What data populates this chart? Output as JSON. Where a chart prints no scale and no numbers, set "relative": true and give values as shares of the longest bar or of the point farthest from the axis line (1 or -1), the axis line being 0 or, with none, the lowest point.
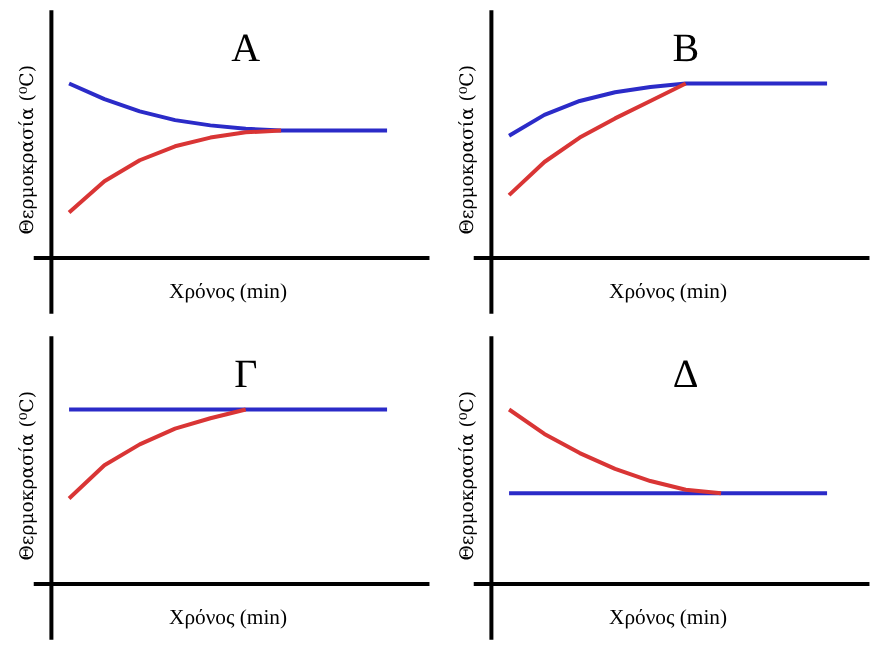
{
  "chart_data": [
    {
      "type": "line",
      "title": "Α",
      "xlabel": "Χρόνος (min)",
      "ylabel": "Θερμοκρασία (⁰C)",
      "relative": true,
      "categories": [
        null,
        null,
        null,
        null,
        null,
        null,
        null,
        null,
        null,
        null
      ],
      "series": [
        {
          "color": "#2b2bc8",
          "values": [
            1.0,
            0.91,
            0.84,
            0.79,
            0.76,
            0.74,
            0.73,
            0.73,
            0.73,
            0.73
          ]
        },
        {
          "color": "#d93535",
          "values": [
            0.26,
            0.44,
            0.56,
            0.64,
            0.69,
            0.72,
            0.73,
            null,
            null,
            null
          ]
        }
      ]
    },
    {
      "type": "line",
      "title": "Β",
      "xlabel": "Χρόνος (min)",
      "ylabel": "Θερμοκρασία (⁰C)",
      "relative": true,
      "categories": [
        null,
        null,
        null,
        null,
        null,
        null,
        null,
        null,
        null,
        null
      ],
      "series": [
        {
          "color": "#2b2bc8",
          "values": [
            0.7,
            0.82,
            0.9,
            0.95,
            0.98,
            1.0,
            1.0,
            1.0,
            1.0,
            1.0
          ]
        },
        {
          "color": "#d93535",
          "values": [
            0.36,
            0.55,
            0.69,
            0.8,
            0.9,
            1.0,
            null,
            null,
            null,
            null
          ]
        }
      ]
    },
    {
      "type": "line",
      "title": "Γ",
      "xlabel": "Χρόνος (min)",
      "ylabel": "Θερμοκρασία (⁰C)",
      "relative": true,
      "categories": [
        null,
        null,
        null,
        null,
        null,
        null,
        null,
        null,
        null,
        null
      ],
      "series": [
        {
          "color": "#2b2bc8",
          "values": [
            1.0,
            1.0,
            1.0,
            1.0,
            1.0,
            1.0,
            1.0,
            1.0,
            1.0,
            1.0
          ]
        },
        {
          "color": "#d93535",
          "values": [
            0.49,
            0.68,
            0.8,
            0.89,
            0.95,
            1.0,
            null,
            null,
            null,
            null
          ]
        }
      ]
    },
    {
      "type": "line",
      "title": "Δ",
      "xlabel": "Χρόνος (min)",
      "ylabel": "Θερμοκρασία (⁰C)",
      "relative": true,
      "categories": [
        null,
        null,
        null,
        null,
        null,
        null,
        null,
        null,
        null,
        null
      ],
      "series": [
        {
          "color": "#2b2bc8",
          "values": [
            0.52,
            0.52,
            0.52,
            0.52,
            0.52,
            0.52,
            0.52,
            0.52,
            0.52,
            0.52
          ]
        },
        {
          "color": "#d93535",
          "values": [
            1.0,
            0.86,
            0.75,
            0.66,
            0.59,
            0.54,
            0.52,
            null,
            null,
            null
          ]
        }
      ]
    }
  ]
}
